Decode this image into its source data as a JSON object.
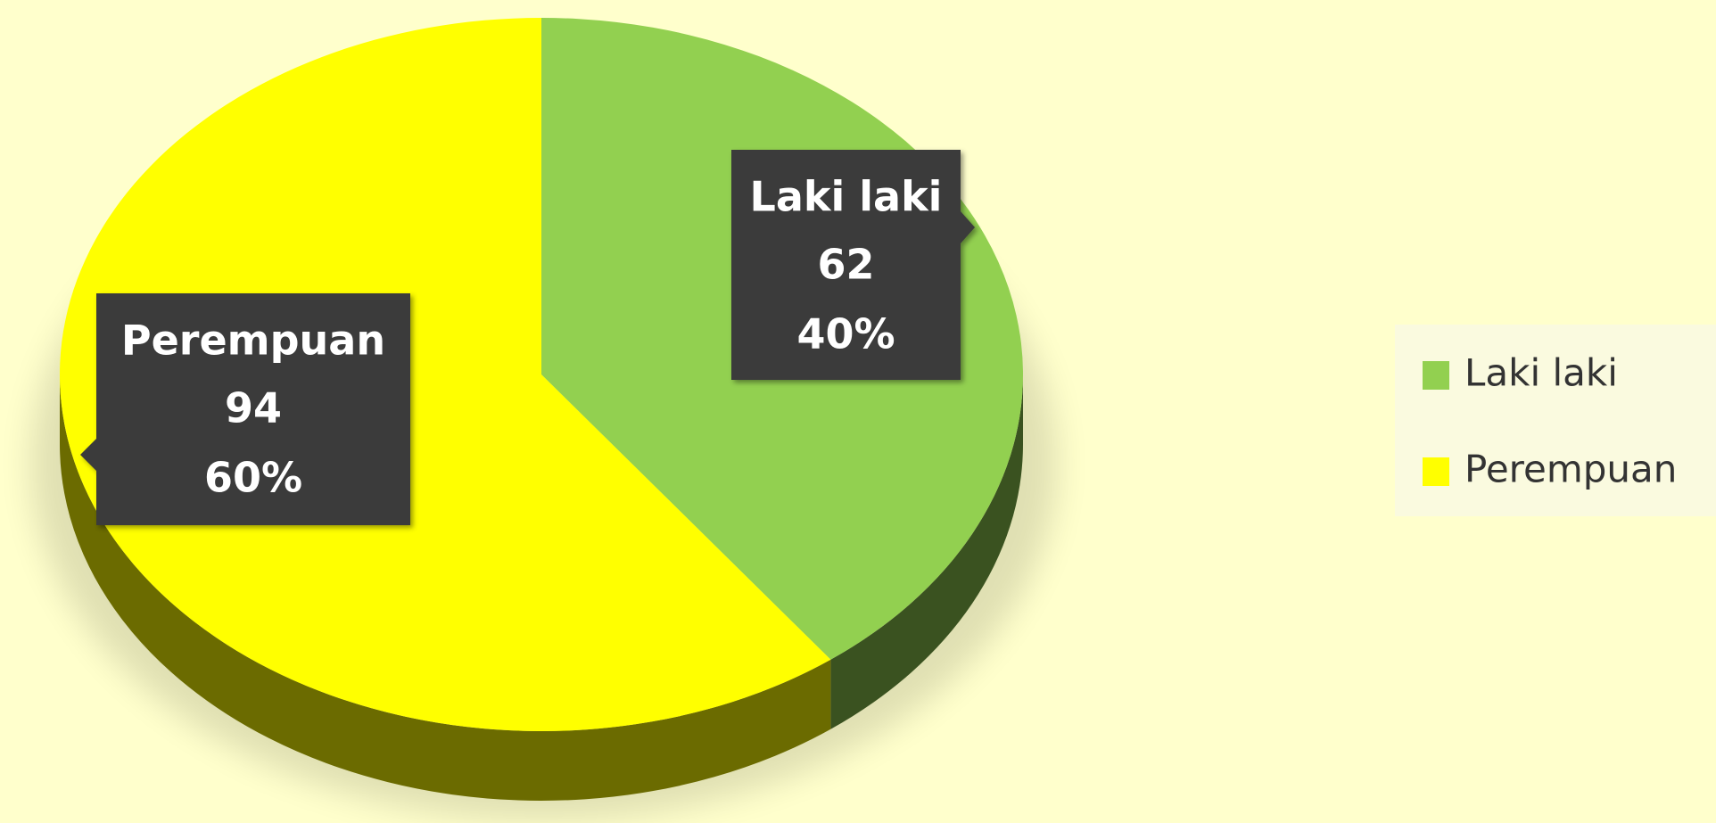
{
  "chart_data": {
    "type": "pie3d",
    "categories": [
      "Laki laki",
      "Perempuan"
    ],
    "values": [
      62,
      94
    ],
    "percent_values": [
      40,
      60
    ],
    "percent_labels": [
      "40%",
      "60%"
    ],
    "colors": [
      "#92d050",
      "#ffff00"
    ],
    "side_colors": [
      "#3a5220",
      "#6b6b00"
    ],
    "legend": "right"
  }
}
